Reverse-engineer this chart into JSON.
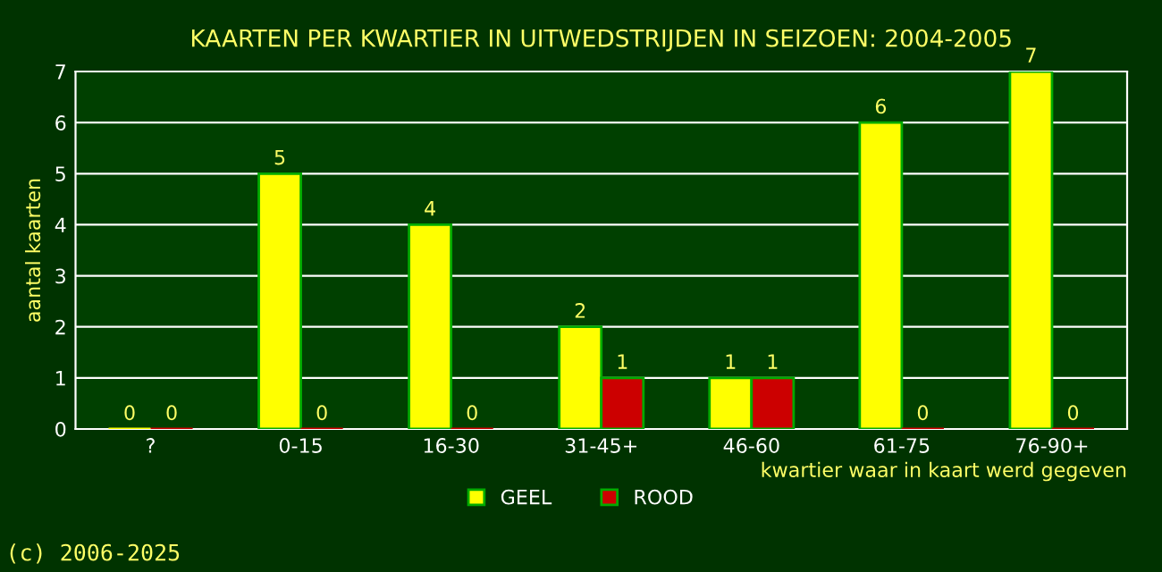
{
  "chart_data": {
    "type": "bar",
    "title": "KAARTEN PER KWARTIER IN UITWEDSTRIJDEN IN SEIZOEN: 2004-2005",
    "xlabel": "kwartier waar in kaart werd gegeven",
    "ylabel": "aantal kaarten",
    "categories": [
      "?",
      "0-15",
      "16-30",
      "31-45+",
      "46-60",
      "61-75",
      "76-90+"
    ],
    "series": [
      {
        "name": "GEEL",
        "color": "#ffff00",
        "values": [
          0,
          5,
          4,
          2,
          1,
          6,
          7
        ]
      },
      {
        "name": "ROOD",
        "color": "#cc0000",
        "values": [
          0,
          0,
          0,
          1,
          1,
          0,
          0
        ]
      }
    ],
    "ylim": [
      0,
      7
    ],
    "yticks": [
      0,
      1,
      2,
      3,
      4,
      5,
      6,
      7
    ],
    "grid": "y",
    "legend": "bottom",
    "data_labels": true,
    "annotations": [
      "(c) 2006-2025"
    ]
  }
}
